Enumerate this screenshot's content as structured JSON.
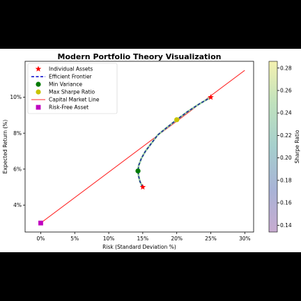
{
  "chart_data": {
    "type": "scatter",
    "title": "Modern Portfolio Theory Visualization",
    "xlabel": "Risk (Standard Deviation %)",
    "ylabel": "Expected Return (%)",
    "xlim": [
      -2.3,
      31.3
    ],
    "ylim": [
      2.5,
      12.0
    ],
    "xticks": [
      0,
      5,
      10,
      15,
      20,
      25,
      30
    ],
    "xtick_labels": [
      "0%",
      "5%",
      "10%",
      "15%",
      "20%",
      "25%",
      "30%"
    ],
    "yticks": [
      4,
      6,
      8,
      10
    ],
    "ytick_labels": [
      "4%",
      "6%",
      "8%",
      "10%"
    ],
    "grid": false,
    "legend_position": "upper left",
    "legend": [
      {
        "label": "Individual Assets",
        "marker": "star",
        "color": "#ff0000"
      },
      {
        "label": "Efficient Frontier",
        "marker": "dashed-line",
        "color": "#0000cc"
      },
      {
        "label": "Min Variance",
        "marker": "circle",
        "color": "#007a00"
      },
      {
        "label": "Max Sharpe Ratio",
        "marker": "circle",
        "color": "#c8c400"
      },
      {
        "label": "Capital Market Line",
        "marker": "line",
        "color": "#ff2a2a"
      },
      {
        "label": "Risk-Free Asset",
        "marker": "square",
        "color": "#c000c0"
      }
    ],
    "individual_assets": [
      {
        "x": 15.0,
        "y": 5.0
      },
      {
        "x": 25.0,
        "y": 10.0
      }
    ],
    "efficient_frontier": {
      "x": [
        15.0,
        14.6,
        14.4,
        14.3,
        14.4,
        14.8,
        15.4,
        16.2,
        17.2,
        18.5,
        20.0,
        21.6,
        23.2,
        25.0
      ],
      "y": [
        5.0,
        5.3,
        5.6,
        5.9,
        6.2,
        6.6,
        7.0,
        7.4,
        7.9,
        8.3,
        8.75,
        9.2,
        9.6,
        10.0
      ]
    },
    "min_variance": {
      "x": 14.3,
      "y": 5.9
    },
    "max_sharpe": {
      "x": 20.0,
      "y": 8.75
    },
    "capital_market_line": {
      "x": [
        0,
        30
      ],
      "y": [
        3.0,
        11.5
      ]
    },
    "risk_free": {
      "x": 0,
      "y": 3.0
    },
    "colorbar": {
      "label": "Sharpe Ratio",
      "range": [
        0.134,
        0.286
      ],
      "ticks": [
        0.14,
        0.16,
        0.18,
        0.2,
        0.22,
        0.24,
        0.26,
        0.28
      ],
      "tick_labels": [
        "0.14",
        "0.16",
        "0.18",
        "0.20",
        "0.22",
        "0.24",
        "0.26",
        "0.28"
      ],
      "colormap": "viridis"
    }
  }
}
